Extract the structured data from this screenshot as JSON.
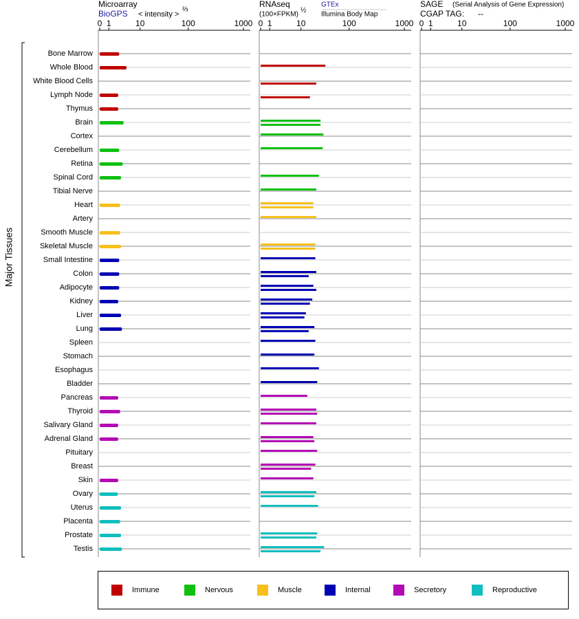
{
  "chart_data": {
    "type": "bar",
    "y_label": "Major Tissues",
    "categories": [
      "Bone Marrow",
      "Whole Blood",
      "White Blood Cells",
      "Lymph Node",
      "Thymus",
      "Brain",
      "Cortex",
      "Cerebellum",
      "Retina",
      "Spinal Cord",
      "Tibial Nerve",
      "Heart",
      "Artery",
      "Smooth Muscle",
      "Skeletal Muscle",
      "Small Intestine",
      "Colon",
      "Adipocyte",
      "Kidney",
      "Liver",
      "Lung",
      "Spleen",
      "Stomach",
      "Esophagus",
      "Bladder",
      "Pancreas",
      "Thyroid",
      "Salivary Gland",
      "Adrenal Gland",
      "Pituitary",
      "Breast",
      "Skin",
      "Ovary",
      "Uterus",
      "Placenta",
      "Prostate",
      "Testis"
    ],
    "colors": [
      "#c00000",
      "#c00000",
      "#c00000",
      "#c00000",
      "#c00000",
      "#10c010",
      "#10c010",
      "#10c010",
      "#10c010",
      "#10c010",
      "#10c010",
      "#f7c01a",
      "#f7c01a",
      "#f7c01a",
      "#f7c01a",
      "#0000b4",
      "#0000b4",
      "#0000b4",
      "#0000b4",
      "#0000b4",
      "#0000b4",
      "#0000b4",
      "#0000b4",
      "#0000b4",
      "#0000b4",
      "#b40ab4",
      "#b40ab4",
      "#b40ab4",
      "#b40ab4",
      "#b40ab4",
      "#b40ab4",
      "#b40ab4",
      "#10bebe",
      "#10bebe",
      "#10bebe",
      "#10bebe",
      "#10bebe"
    ],
    "legend": [
      {
        "name": "Immune",
        "color": "#c00000"
      },
      {
        "name": "Nervous",
        "color": "#10c010"
      },
      {
        "name": "Muscle",
        "color": "#f7c01a"
      },
      {
        "name": "Internal",
        "color": "#0000b4"
      },
      {
        "name": "Secretory",
        "color": "#b40ab4"
      },
      {
        "name": "Reproductive",
        "color": "#10bebe"
      }
    ],
    "panels": [
      {
        "title": "Microarray",
        "x_label": "< intensity >",
        "x_label_exponent": "⅔",
        "xlim": [
          0,
          1000
        ],
        "xticks": [
          0,
          1,
          10,
          100,
          1000
        ],
        "series": [
          {
            "name": "BioGPS",
            "values": [
              2.7,
              4.5,
              null,
              2.5,
              2.5,
              3.7,
              null,
              2.7,
              3.5,
              3.1,
              null,
              2.9,
              null,
              2.9,
              3.1,
              2.7,
              2.7,
              2.7,
              2.5,
              3.1,
              3.3,
              null,
              null,
              null,
              null,
              2.5,
              2.9,
              2.5,
              2.5,
              null,
              null,
              2.5,
              2.4,
              3.1,
              2.9,
              3.1,
              3.3
            ]
          }
        ]
      },
      {
        "title": "RNAseq",
        "x_label": "(100×FPKM)",
        "x_label_exponent": "½",
        "xlim": [
          0,
          1000
        ],
        "xticks": [
          0,
          1,
          10,
          100,
          1000
        ],
        "series": [
          {
            "name": "GTEx",
            "values": [
              null,
              34,
              null,
              null,
              null,
              27,
              31,
              30,
              null,
              25,
              22,
              19,
              22,
              null,
              21,
              21,
              22,
              19,
              18,
              13,
              20,
              21,
              20,
              25,
              23,
              14,
              22,
              22,
              19,
              23,
              21,
              19,
              22,
              24,
              null,
              23,
              32
            ]
          },
          {
            "name": "Illumina Body Map",
            "values": [
              null,
              null,
              22,
              16,
              null,
              27,
              null,
              null,
              null,
              null,
              null,
              19,
              null,
              null,
              21,
              null,
              15,
              22,
              16,
              12,
              15,
              null,
              null,
              null,
              null,
              null,
              23,
              null,
              20,
              null,
              17,
              null,
              20,
              null,
              null,
              22,
              27
            ]
          }
        ]
      },
      {
        "title": "SAGE",
        "subtitle": "(Serial Analysis of Gene Expression)",
        "tag_label": "CGAP TAG:",
        "tag": "--",
        "xlim": [
          0,
          1000
        ],
        "xticks": [
          0,
          1,
          10,
          100,
          1000
        ],
        "series": []
      }
    ]
  }
}
